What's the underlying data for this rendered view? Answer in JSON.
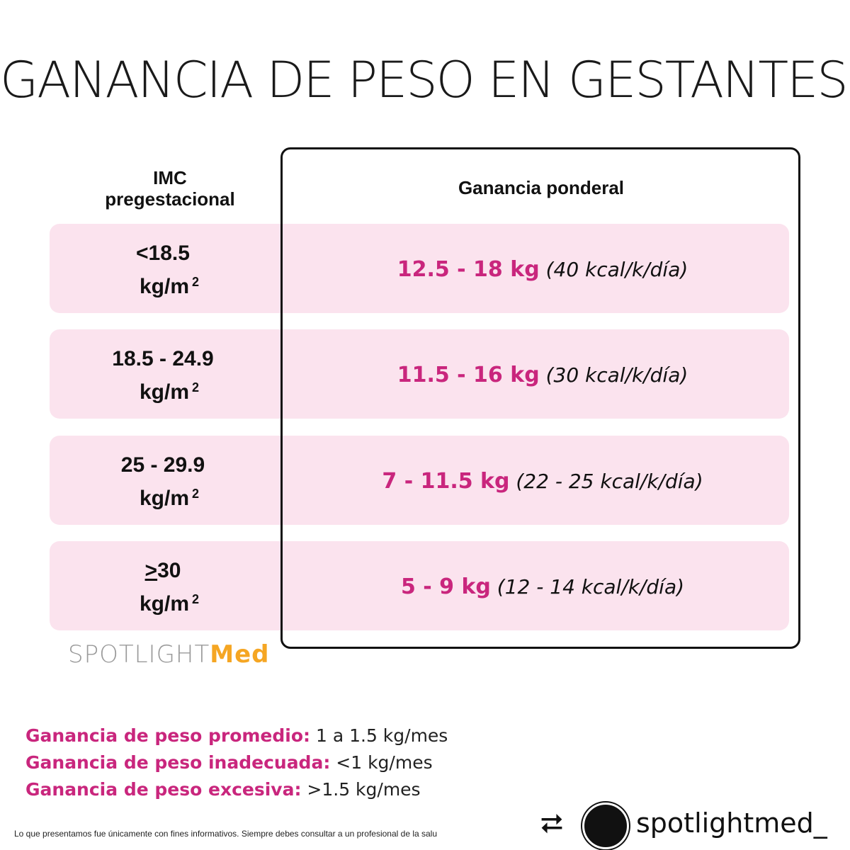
{
  "title": {
    "text": "GANANCIA DE PESO EN GESTANTES",
    "dot": "."
  },
  "table": {
    "header_left_line1": "IMC",
    "header_left_line2": "pregestacional",
    "header_right": "Ganancia ponderal",
    "rows": [
      {
        "imc": "<18.5",
        "unit": "kg/m",
        "sup": "2",
        "gain": "12.5 - 18 kg",
        "kcal": "(40 kcal/k/día)"
      },
      {
        "imc": "18.5 - 24.9",
        "unit": "kg/m",
        "sup": "2",
        "gain": "11.5 - 16 kg",
        "kcal": "(30 kcal/k/día)"
      },
      {
        "imc": "25 - 29.9",
        "unit": "kg/m",
        "sup": "2",
        "gain": "7 - 11.5 kg",
        "kcal": "(22 - 25 kcal/k/día)"
      },
      {
        "imc_prefix": ">",
        "imc": "30",
        "unit": "kg/m",
        "sup": "2",
        "gain": "5 - 9 kg",
        "kcal": "(12 - 14 kcal/k/día)"
      }
    ]
  },
  "logo": {
    "part1": "SPOTLIGHT",
    "part2": "Med"
  },
  "notes": [
    {
      "label": "Ganancia de peso promedio:",
      "value": "1 a 1.5 kg/mes"
    },
    {
      "label": "Ganancia de peso inadecuada:",
      "value": "<1 kg/mes"
    },
    {
      "label": "Ganancia de peso excesiva:",
      "value": ">1.5 kg/mes"
    }
  ],
  "disclaimer": "Lo que presentamos fue únicamente con fines informativos. Siempre debes consultar a un profesional de la salu",
  "footer": {
    "repost_icon": "repost-icon",
    "handle": "spotlightmed_"
  },
  "colors": {
    "accent_pink": "#c9267d",
    "row_background": "#fbe3ee",
    "accent_orange": "#f5a623"
  }
}
